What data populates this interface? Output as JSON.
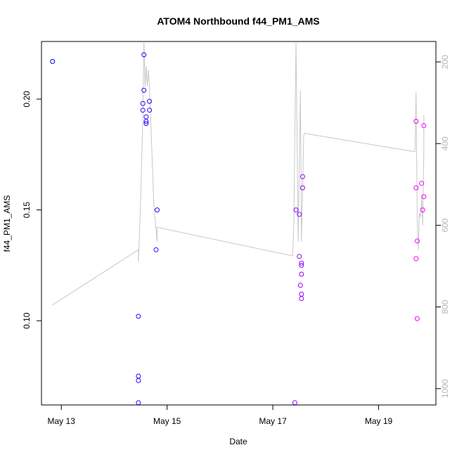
{
  "chart_data": {
    "type": "scatter",
    "title": "ATOM4 Northbound f44_PM1_AMS",
    "xlabel": "Date",
    "ylabel": "f44_PM1_AMS",
    "xlim": [
      "2014-05-12 15:00",
      "2014-05-20 02:00"
    ],
    "ylim": [
      0.062,
      0.226
    ],
    "x_ticks": [
      {
        "label": "May 13",
        "t": "2014-05-13 00:00"
      },
      {
        "label": "May 15",
        "t": "2014-05-15 00:00"
      },
      {
        "label": "May 17",
        "t": "2014-05-17 00:00"
      },
      {
        "label": "May 19",
        "t": "2014-05-19 00:00"
      }
    ],
    "y_ticks": [
      0.1,
      0.15,
      0.2
    ],
    "y_tick_labels": [
      "0.10",
      "0.15",
      "0.20"
    ],
    "y2lim": [
      1040,
      150
    ],
    "y2_ticks": [
      200,
      400,
      600,
      800,
      1000
    ],
    "y2_tick_labels": [
      "200",
      "400",
      "600",
      "800",
      "1000"
    ],
    "point_color_scale": [
      "#0000ff",
      "#ff00ff"
    ],
    "line_color": "#c8c8c8",
    "series": [
      {
        "type": "points",
        "points": [
          {
            "t": "2014-05-12 20:00",
            "y": 0.217,
            "c": 0.0
          },
          {
            "t": "2014-05-14 11:00",
            "y": 0.102,
            "c": 0.16
          },
          {
            "t": "2014-05-14 11:00",
            "y": 0.075,
            "c": 0.16
          },
          {
            "t": "2014-05-14 11:00",
            "y": 0.073,
            "c": 0.16
          },
          {
            "t": "2014-05-14 11:00",
            "y": 0.063,
            "c": 0.16
          },
          {
            "t": "2014-05-14 13:30",
            "y": 0.22,
            "c": 0.17
          },
          {
            "t": "2014-05-14 13:30",
            "y": 0.204,
            "c": 0.17
          },
          {
            "t": "2014-05-14 13:00",
            "y": 0.198,
            "c": 0.17
          },
          {
            "t": "2014-05-14 13:00",
            "y": 0.195,
            "c": 0.17
          },
          {
            "t": "2014-05-14 14:30",
            "y": 0.192,
            "c": 0.18
          },
          {
            "t": "2014-05-14 14:30",
            "y": 0.19,
            "c": 0.18
          },
          {
            "t": "2014-05-14 14:30",
            "y": 0.189,
            "c": 0.18
          },
          {
            "t": "2014-05-14 16:00",
            "y": 0.199,
            "c": 0.18
          },
          {
            "t": "2014-05-14 16:00",
            "y": 0.195,
            "c": 0.18
          },
          {
            "t": "2014-05-14 19:30",
            "y": 0.15,
            "c": 0.2
          },
          {
            "t": "2014-05-14 19:00",
            "y": 0.132,
            "c": 0.2
          },
          {
            "t": "2014-05-17 10:00",
            "y": 0.063,
            "c": 0.55
          },
          {
            "t": "2014-05-17 10:30",
            "y": 0.15,
            "c": 0.56
          },
          {
            "t": "2014-05-17 12:00",
            "y": 0.148,
            "c": 0.56
          },
          {
            "t": "2014-05-17 12:00",
            "y": 0.129,
            "c": 0.57
          },
          {
            "t": "2014-05-17 12:30",
            "y": 0.116,
            "c": 0.57
          },
          {
            "t": "2014-05-17 13:30",
            "y": 0.165,
            "c": 0.58
          },
          {
            "t": "2014-05-17 13:30",
            "y": 0.16,
            "c": 0.58
          },
          {
            "t": "2014-05-17 13:00",
            "y": 0.126,
            "c": 0.58
          },
          {
            "t": "2014-05-17 13:00",
            "y": 0.125,
            "c": 0.58
          },
          {
            "t": "2014-05-17 13:00",
            "y": 0.121,
            "c": 0.58
          },
          {
            "t": "2014-05-17 13:00",
            "y": 0.112,
            "c": 0.58
          },
          {
            "t": "2014-05-17 13:00",
            "y": 0.11,
            "c": 0.58
          },
          {
            "t": "2014-05-19 17:00",
            "y": 0.19,
            "c": 0.96
          },
          {
            "t": "2014-05-19 17:00",
            "y": 0.16,
            "c": 0.96
          },
          {
            "t": "2014-05-19 17:30",
            "y": 0.136,
            "c": 0.96
          },
          {
            "t": "2014-05-19 17:00",
            "y": 0.128,
            "c": 0.96
          },
          {
            "t": "2014-05-19 17:30",
            "y": 0.101,
            "c": 0.96
          },
          {
            "t": "2014-05-19 19:30",
            "y": 0.162,
            "c": 0.98
          },
          {
            "t": "2014-05-19 20:30",
            "y": 0.188,
            "c": 0.99
          },
          {
            "t": "2014-05-19 20:30",
            "y": 0.156,
            "c": 0.99
          },
          {
            "t": "2014-05-19 20:00",
            "y": 0.15,
            "c": 0.99
          }
        ]
      },
      {
        "type": "line",
        "axis": "right",
        "points": [
          {
            "t": "2014-05-12 20:00",
            "v": 795
          },
          {
            "t": "2014-05-14 11:00",
            "v": 660
          },
          {
            "t": "2014-05-14 11:00",
            "v": 690
          },
          {
            "t": "2014-05-14 12:00",
            "v": 540
          },
          {
            "t": "2014-05-14 13:00",
            "v": 330
          },
          {
            "t": "2014-05-14 13:30",
            "v": 150
          },
          {
            "t": "2014-05-14 14:00",
            "v": 260
          },
          {
            "t": "2014-05-14 14:30",
            "v": 210
          },
          {
            "t": "2014-05-14 15:00",
            "v": 260
          },
          {
            "t": "2014-05-14 15:30",
            "v": 220
          },
          {
            "t": "2014-05-14 16:00",
            "v": 260
          },
          {
            "t": "2014-05-14 18:00",
            "v": 550
          },
          {
            "t": "2014-05-14 19:30",
            "v": 640
          },
          {
            "t": "2014-05-14 19:30",
            "v": 605
          },
          {
            "t": "2014-05-17 09:00",
            "v": 675
          },
          {
            "t": "2014-05-17 09:30",
            "v": 600
          },
          {
            "t": "2014-05-17 10:30",
            "v": 150
          },
          {
            "t": "2014-05-17 11:00",
            "v": 400
          },
          {
            "t": "2014-05-17 11:30",
            "v": 640
          },
          {
            "t": "2014-05-17 12:00",
            "v": 460
          },
          {
            "t": "2014-05-17 12:30",
            "v": 270
          },
          {
            "t": "2014-05-17 13:00",
            "v": 640
          },
          {
            "t": "2014-05-17 14:00",
            "v": 380
          },
          {
            "t": "2014-05-17 14:30",
            "v": 375
          },
          {
            "t": "2014-05-19 16:30",
            "v": 420
          },
          {
            "t": "2014-05-19 17:00",
            "v": 275
          },
          {
            "t": "2014-05-19 17:30",
            "v": 580
          },
          {
            "t": "2014-05-19 18:00",
            "v": 660
          },
          {
            "t": "2014-05-19 18:30",
            "v": 570
          },
          {
            "t": "2014-05-19 19:00",
            "v": 580
          },
          {
            "t": "2014-05-19 19:30",
            "v": 530
          },
          {
            "t": "2014-05-19 20:00",
            "v": 600
          },
          {
            "t": "2014-05-19 20:30",
            "v": 420
          },
          {
            "t": "2014-05-19 20:30",
            "v": 330
          }
        ]
      }
    ]
  }
}
